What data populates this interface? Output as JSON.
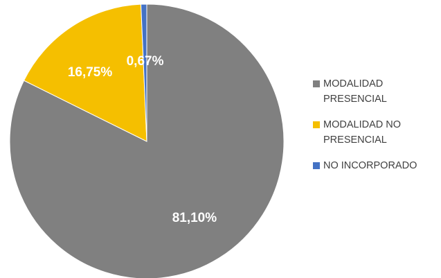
{
  "chart_data": {
    "type": "pie",
    "title": "",
    "slices": [
      {
        "label": "MODALIDAD PRESENCIAL",
        "label_lines": [
          "MODALIDAD",
          "PRESENCIAL"
        ],
        "value": 81.1,
        "display": "81,10%",
        "color": "#808080"
      },
      {
        "label": "MODALIDAD NO PRESENCIAL",
        "label_lines": [
          "MODALIDAD NO",
          "PRESENCIAL"
        ],
        "value": 16.75,
        "display": "16,75%",
        "color": "#f5bf00"
      },
      {
        "label": "NO INCORPORADO",
        "label_lines": [
          "NO INCORPORADO"
        ],
        "value": 0.67,
        "display": "0,67%",
        "color": "#4472c4"
      }
    ],
    "legend_position": "right",
    "start_angle": "top",
    "direction": "clockwise"
  }
}
